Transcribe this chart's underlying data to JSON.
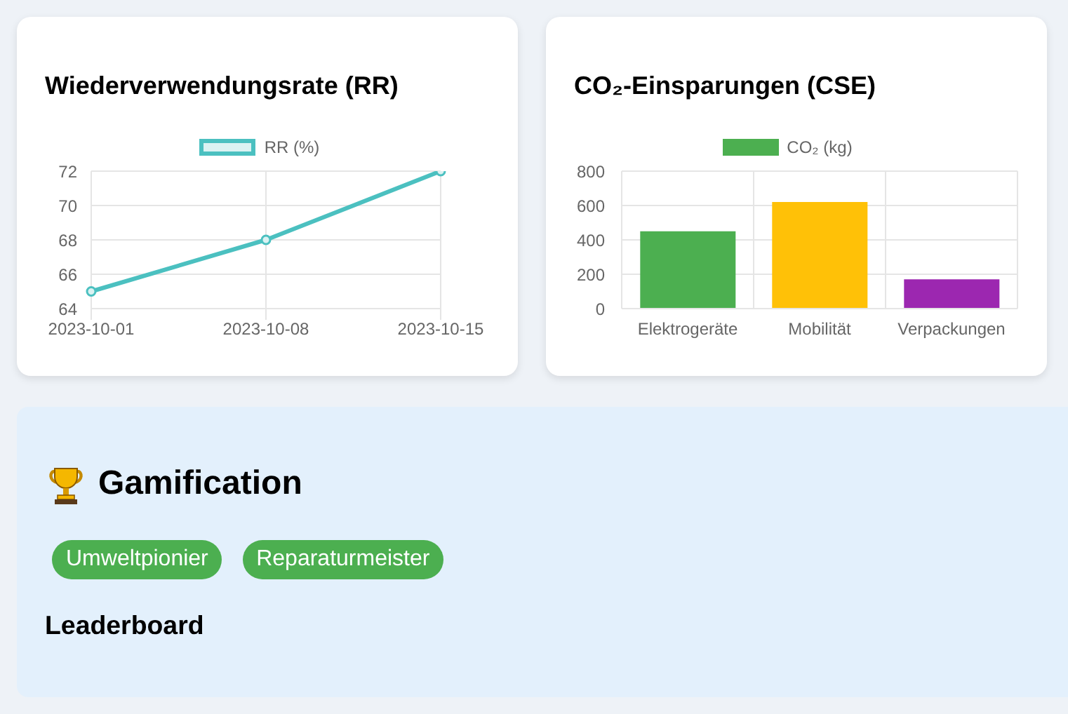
{
  "chart_data": [
    {
      "type": "line",
      "title": "Wiederverwendungsrate (RR)",
      "categories": [
        "2023-10-01",
        "2023-10-08",
        "2023-10-15"
      ],
      "series": [
        {
          "name": "RR (%)",
          "color": "#4bc0c0",
          "values": [
            65,
            68,
            72
          ]
        }
      ],
      "ylim": [
        64,
        72
      ],
      "yticks": [
        64,
        66,
        68,
        70,
        72
      ],
      "grid": true,
      "legend": "top",
      "marker": "circle"
    },
    {
      "type": "bar",
      "title": "CO₂-Einsparungen (CSE)",
      "categories": [
        "Elektrogeräte",
        "Mobilität",
        "Verpackungen"
      ],
      "series": [
        {
          "name": "CO₂ (kg)",
          "color": "#4caf50",
          "colors": [
            "#4caf50",
            "#ffc107",
            "#9c27b0"
          ],
          "values": [
            450,
            620,
            170
          ]
        }
      ],
      "ylim": [
        0,
        800
      ],
      "yticks": [
        0,
        200,
        400,
        600,
        800
      ],
      "grid": true,
      "legend": "top"
    },
    {
      "type": "other",
      "title": "Gamification",
      "annotations": [
        "Umweltpionier",
        "Reparaturmeister",
        "Leaderboard"
      ]
    }
  ]
}
